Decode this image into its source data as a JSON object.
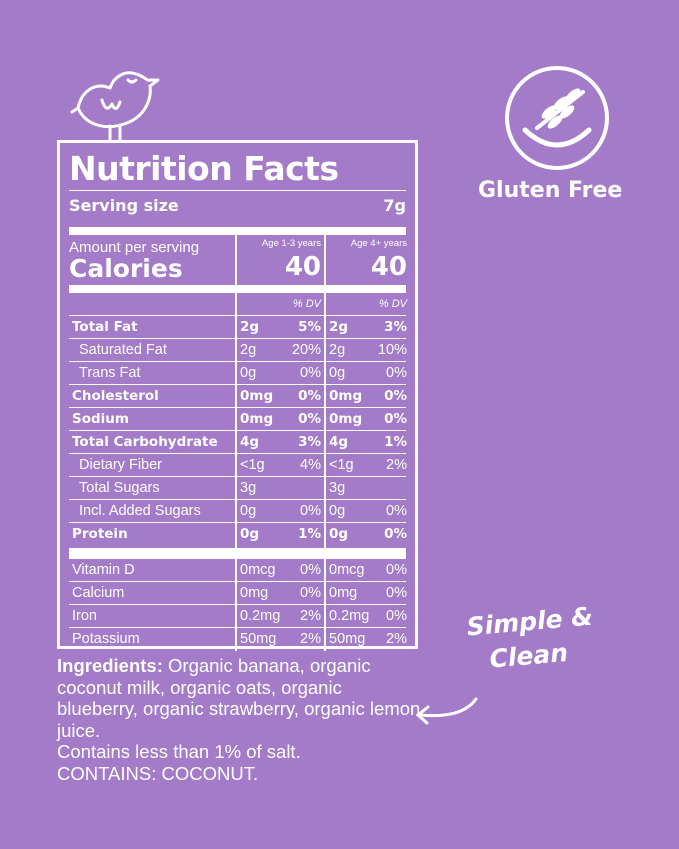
{
  "label": {
    "title": "Nutrition Facts",
    "serving_label": "Serving size",
    "serving_value": "7g",
    "amount_per_serving": "Amount per serving",
    "calories_label": "Calories",
    "columns": [
      {
        "age": "Age 1-3 years",
        "calories": "40",
        "dv_header": "% DV"
      },
      {
        "age": "Age 4+ years",
        "calories": "40",
        "dv_header": "% DV"
      }
    ],
    "nutrients": [
      {
        "name": "Total Fat",
        "bold": true,
        "indent": false,
        "c1": [
          "2g",
          "5%"
        ],
        "c2": [
          "2g",
          "3%"
        ]
      },
      {
        "name": "Saturated Fat",
        "bold": false,
        "indent": true,
        "c1": [
          "2g",
          "20%"
        ],
        "c2": [
          "2g",
          "10%"
        ]
      },
      {
        "name": "Trans Fat",
        "bold": false,
        "indent": true,
        "c1": [
          "0g",
          "0%"
        ],
        "c2": [
          "0g",
          "0%"
        ]
      },
      {
        "name": "Cholesterol",
        "bold": true,
        "indent": false,
        "c1": [
          "0mg",
          "0%"
        ],
        "c2": [
          "0mg",
          "0%"
        ]
      },
      {
        "name": "Sodium",
        "bold": true,
        "indent": false,
        "c1": [
          "0mg",
          "0%"
        ],
        "c2": [
          "0mg",
          "0%"
        ]
      },
      {
        "name": "Total Carbohydrate",
        "bold": true,
        "indent": false,
        "c1": [
          "4g",
          "3%"
        ],
        "c2": [
          "4g",
          "1%"
        ]
      },
      {
        "name": "Dietary Fiber",
        "bold": false,
        "indent": true,
        "c1": [
          "<1g",
          "4%"
        ],
        "c2": [
          "<1g",
          "2%"
        ]
      },
      {
        "name": "Total Sugars",
        "bold": false,
        "indent": true,
        "c1": [
          "3g",
          ""
        ],
        "c2": [
          "3g",
          ""
        ]
      },
      {
        "name": "Incl. Added Sugars",
        "bold": false,
        "indent": true,
        "c1": [
          "0g",
          "0%"
        ],
        "c2": [
          "0g",
          "0%"
        ]
      },
      {
        "name": "Protein",
        "bold": true,
        "indent": false,
        "c1": [
          "0g",
          "1%"
        ],
        "c2": [
          "0g",
          "0%"
        ]
      }
    ],
    "vitamins": [
      {
        "name": "Vitamin D",
        "c1": [
          "0mcg",
          "0%"
        ],
        "c2": [
          "0mcg",
          "0%"
        ]
      },
      {
        "name": "Calcium",
        "c1": [
          "0mg",
          "0%"
        ],
        "c2": [
          "0mg",
          "0%"
        ]
      },
      {
        "name": "Iron",
        "c1": [
          "0.2mg",
          "2%"
        ],
        "c2": [
          "0.2mg",
          "0%"
        ]
      },
      {
        "name": "Potassium",
        "c1": [
          "50mg",
          "2%"
        ],
        "c2": [
          "50mg",
          "2%"
        ]
      }
    ]
  },
  "ingredients": {
    "label": "Ingredients:",
    "text": " Organic banana, organic coconut milk, organic oats, organic blueberry, organic strawberry, organic lemon juice.",
    "salt": "Contains less than 1% of salt.",
    "allergen": "CONTAINS: COCONUT."
  },
  "badge": {
    "text": "Gluten Free",
    "icon": "wheat-smile-icon"
  },
  "callout": {
    "line1": "Simple &",
    "line2": "Clean",
    "icon": "curved-arrow-icon"
  },
  "mascot": {
    "icon": "bird-icon"
  },
  "colors": {
    "background": "#a37bc8",
    "foreground": "#ffffff"
  }
}
